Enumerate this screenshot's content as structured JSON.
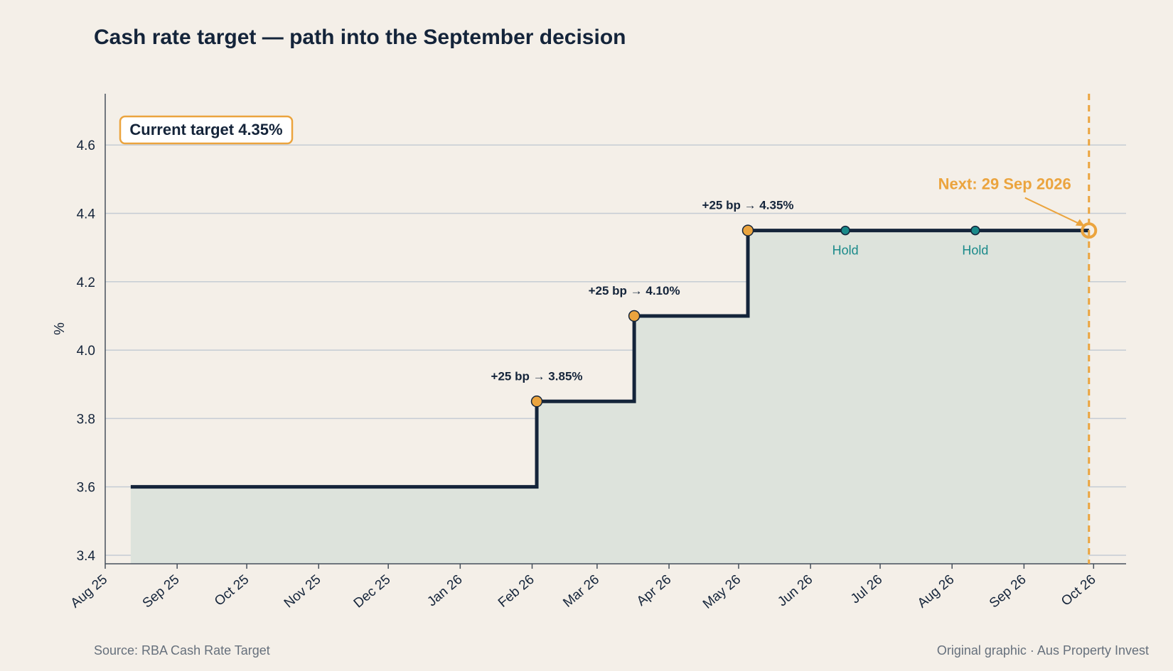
{
  "title": "Cash rate target — path into the September decision",
  "footer": {
    "source": "Source: RBA Cash Rate Target",
    "credit": "Original graphic · Aus Property Invest"
  },
  "colors": {
    "background": "#f4efe8",
    "line": "#14243a",
    "fill": "#dde3dc",
    "accent_orange": "#eba43e",
    "hold_teal": "#1a8a8a",
    "grid": "#c5ccd4"
  },
  "chart_data": {
    "type": "line",
    "step": true,
    "title": "Cash rate target — path into the September decision",
    "xlabel": "",
    "ylabel": "%",
    "ylim": [
      3.375,
      4.75
    ],
    "yticks": [
      3.4,
      3.6,
      3.8,
      4.0,
      4.2,
      4.4,
      4.6
    ],
    "ytick_labels": [
      "3.4",
      "3.6",
      "3.8",
      "4.0",
      "4.2",
      "4.4",
      "4.6"
    ],
    "xlim": [
      "2025-08-01",
      "2026-10-15"
    ],
    "xticks": [
      {
        "date": "2025-08-01",
        "label": "Aug 25"
      },
      {
        "date": "2025-09-01",
        "label": "Sep 25"
      },
      {
        "date": "2025-10-01",
        "label": "Oct 25"
      },
      {
        "date": "2025-11-01",
        "label": "Nov 25"
      },
      {
        "date": "2025-12-01",
        "label": "Dec 25"
      },
      {
        "date": "2026-01-01",
        "label": "Jan 26"
      },
      {
        "date": "2026-02-01",
        "label": "Feb 26"
      },
      {
        "date": "2026-03-01",
        "label": "Mar 26"
      },
      {
        "date": "2026-04-01",
        "label": "Apr 26"
      },
      {
        "date": "2026-05-01",
        "label": "May 26"
      },
      {
        "date": "2026-06-01",
        "label": "Jun 26"
      },
      {
        "date": "2026-07-01",
        "label": "Jul 26"
      },
      {
        "date": "2026-08-01",
        "label": "Aug 26"
      },
      {
        "date": "2026-09-01",
        "label": "Sep 26"
      },
      {
        "date": "2026-10-01",
        "label": "Oct 26"
      }
    ],
    "series": [
      {
        "points": [
          {
            "x": "2025-08-12",
            "y": 3.6
          },
          {
            "x": "2026-02-03",
            "y": 3.85
          },
          {
            "x": "2026-03-17",
            "y": 4.1
          },
          {
            "x": "2026-05-05",
            "y": 4.35
          },
          {
            "x": "2026-09-29",
            "y": 4.35
          }
        ]
      }
    ],
    "hikes": [
      {
        "x": "2026-02-03",
        "y": 3.85,
        "label": "+25 bp → 3.85%"
      },
      {
        "x": "2026-03-17",
        "y": 4.1,
        "label": "+25 bp → 4.10%"
      },
      {
        "x": "2026-05-05",
        "y": 4.35,
        "label": "+25 bp → 4.35%"
      }
    ],
    "holds": [
      {
        "x": "2026-06-16",
        "y": 4.35,
        "label": "Hold"
      },
      {
        "x": "2026-08-11",
        "y": 4.35,
        "label": "Hold"
      }
    ],
    "next_decision": {
      "x": "2026-09-29",
      "y": 4.35,
      "label": "Next: 29 Sep 2026"
    },
    "current_badge": "Current target 4.35%",
    "grid": "horizontal",
    "legend": "none"
  }
}
